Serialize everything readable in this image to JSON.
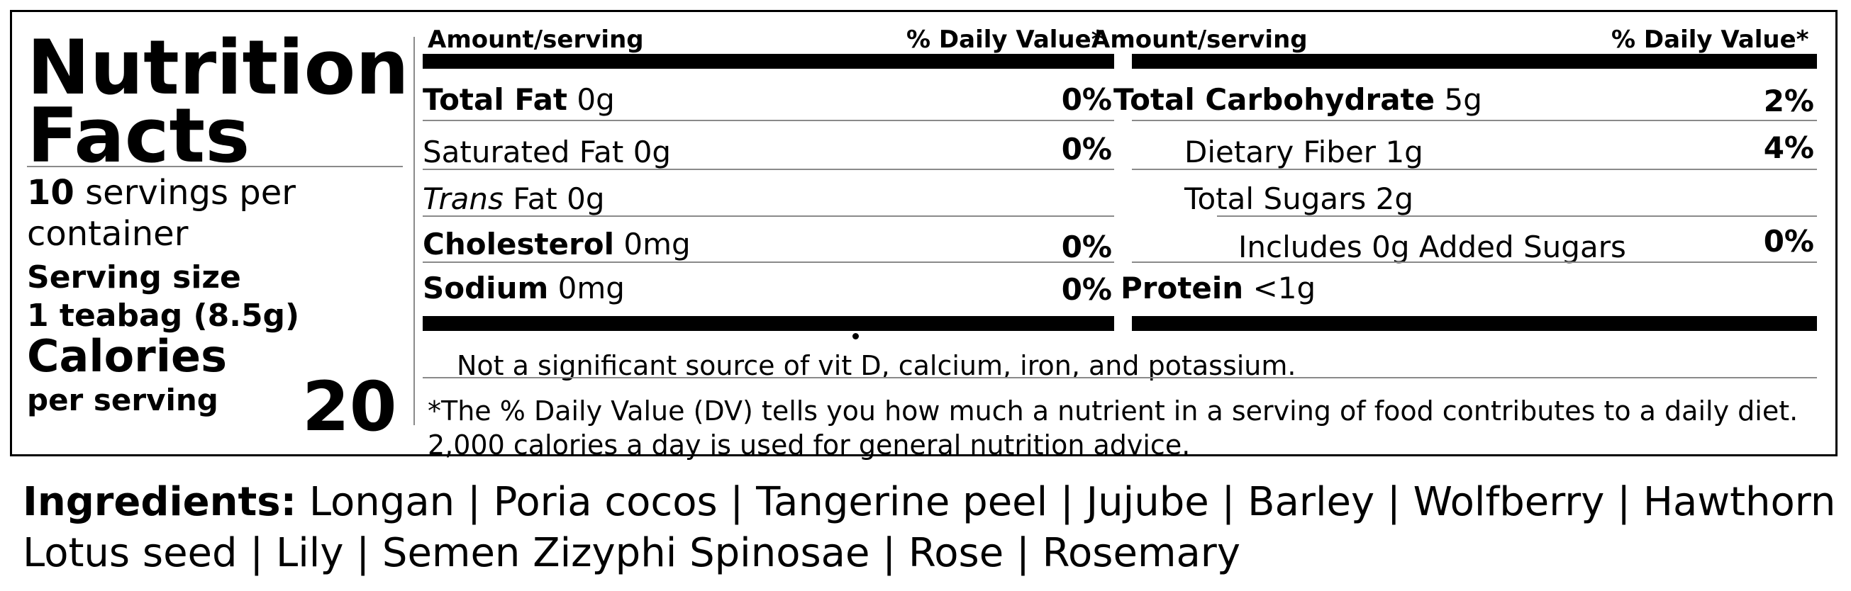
{
  "label": {
    "title_line1": "Nutrition",
    "title_line2": "Facts",
    "servings_count": "10",
    "servings_text": "servings per",
    "servings_text2": "container",
    "serving_size_label": "Serving size",
    "serving_size_value": "1 teabag (8.5g)",
    "calories_label": "Calories",
    "per_serving": "per serving",
    "calories_value": "20"
  },
  "columns": {
    "left_header": {
      "amount": "Amount/serving",
      "dv": "% Daily Value*"
    },
    "right_header": {
      "amount": "Amount/serving",
      "dv": "% Daily Value*"
    }
  },
  "nutrients_left": [
    {
      "name": "Total Fat",
      "amount": "0g",
      "dv": "0%"
    },
    {
      "name": "Saturated Fat",
      "amount": "0g",
      "dv": "0%"
    },
    {
      "name_italic": "Trans",
      "name": "Fat",
      "amount": "0g",
      "dv": ""
    },
    {
      "name": "Cholesterol",
      "amount": "0mg",
      "dv": "0%"
    },
    {
      "name": "Sodium",
      "amount": "0mg",
      "dv": "0%"
    }
  ],
  "nutrients_right": [
    {
      "name": "Total Carbohydrate",
      "amount": "5g",
      "dv": "2%"
    },
    {
      "name": "Dietary Fiber",
      "amount": "1g",
      "dv": "4%"
    },
    {
      "name": "Total Sugars",
      "amount": "2g",
      "dv": ""
    },
    {
      "name": "Includes 0g Added Sugars",
      "amount": "",
      "dv": "0%"
    },
    {
      "name": "Protein",
      "amount": "<1g",
      "dv": ""
    }
  ],
  "footnotes": {
    "vitamins": "Not a significant source of vit D, calcium, iron, and potassium.",
    "dv_line1": "*The % Daily Value (DV) tells you how much a nutrient in a serving of food contributes to a daily diet.",
    "dv_line2": "2,000 calories a day is used for general nutrition advice."
  },
  "ingredients": {
    "label": "Ingredients:",
    "line1": "Longan | Poria cocos | Tangerine peel | Jujube | Barley | Wolfberry | Hawthorn",
    "line2": "Lotus seed | Lily | Semen Zizyphi Spinosae | Rose | Rosemary"
  }
}
